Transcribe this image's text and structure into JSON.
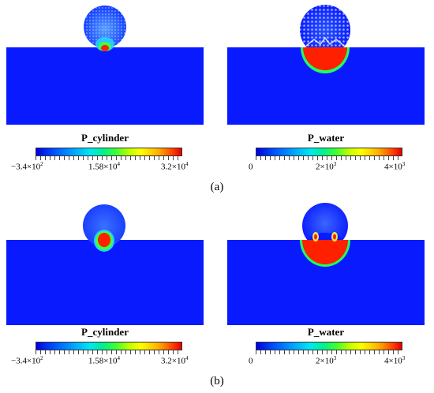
{
  "rows": [
    {
      "caption": "(a)",
      "left": {
        "title": "P_cylinder",
        "ticks": [
          {
            "mant": "−3.4×10",
            "exp": "2"
          },
          {
            "mant": "1.58×10",
            "exp": "4"
          },
          {
            "mant": "3.2×10",
            "exp": "4"
          }
        ]
      },
      "right": {
        "title": "P_water",
        "ticks": [
          {
            "mant": "0",
            "exp": ""
          },
          {
            "mant": "2×10",
            "exp": "3"
          },
          {
            "mant": "4×10",
            "exp": "3"
          }
        ]
      }
    },
    {
      "caption": "(b)",
      "left": {
        "title": "P_cylinder",
        "ticks": [
          {
            "mant": "−3.4×10",
            "exp": "2"
          },
          {
            "mant": "1.58×10",
            "exp": "4"
          },
          {
            "mant": "3.2×10",
            "exp": "4"
          }
        ]
      },
      "right": {
        "title": "P_water",
        "ticks": [
          {
            "mant": "0",
            "exp": ""
          },
          {
            "mant": "2×10",
            "exp": "3"
          },
          {
            "mant": "4×10",
            "exp": "3"
          }
        ]
      }
    }
  ],
  "colors": {
    "water_blue": "#0a1aff",
    "cylinder_blue": "#3a6cff",
    "high_red": "#ff2000",
    "mid_green": "#20ff60",
    "background": "#ffffff"
  }
}
